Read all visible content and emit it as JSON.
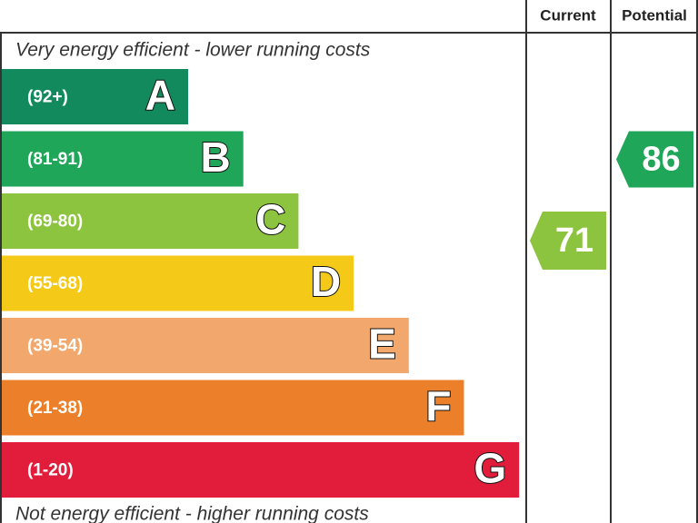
{
  "chart_data": {
    "type": "epc",
    "columns": [
      "Current",
      "Potential"
    ],
    "top_note": "Very energy efficient - lower running costs",
    "bottom_note": "Not energy efficient - higher running costs",
    "bands": [
      {
        "range": "(92+)",
        "letter": "A",
        "color": "#138a5d"
      },
      {
        "range": "(81-91)",
        "letter": "B",
        "color": "#20a659"
      },
      {
        "range": "(69-80)",
        "letter": "C",
        "color": "#8cc33f"
      },
      {
        "range": "(55-68)",
        "letter": "D",
        "color": "#f5c918"
      },
      {
        "range": "(39-54)",
        "letter": "E",
        "color": "#f2a86c"
      },
      {
        "range": "(21-38)",
        "letter": "F",
        "color": "#ec7f29"
      },
      {
        "range": "(1-20)",
        "letter": "G",
        "color": "#e11d3b"
      }
    ],
    "ratings": [
      71,
      86
    ]
  }
}
